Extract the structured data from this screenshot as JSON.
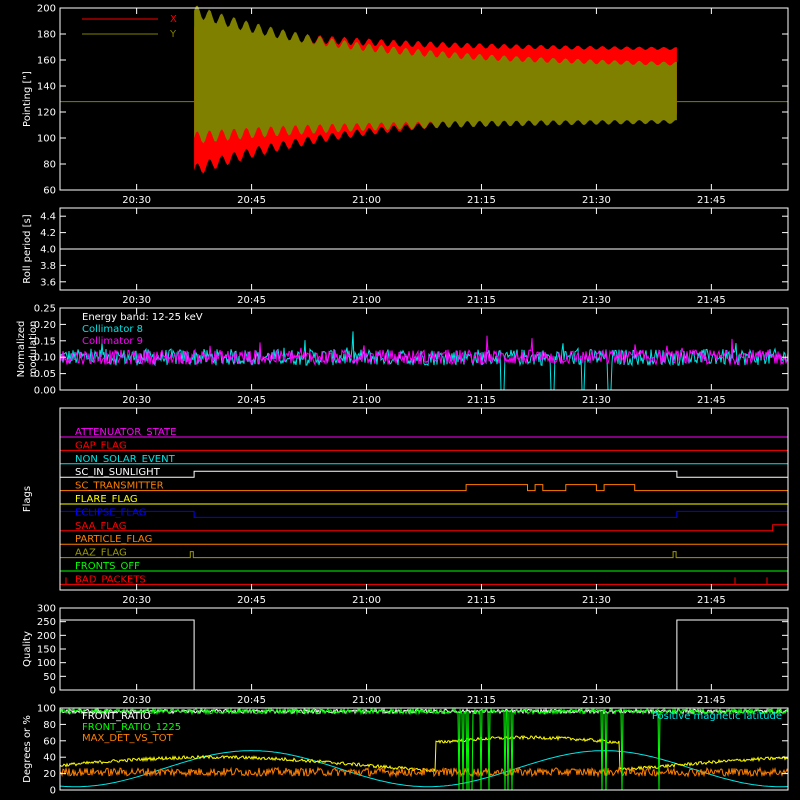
{
  "colors": {
    "background": "#000000",
    "axes": "#ffffff",
    "x_series": "#ff0000",
    "y_series": "#7f7f00",
    "white": "#ffffff",
    "cyan": "#00e5e5",
    "magenta": "#ff00ff",
    "yellow": "#ffff00",
    "orange": "#ff7f00",
    "green": "#00ff00",
    "blue": "#0000ff",
    "olive": "#9a9a00",
    "red": "#ff0000",
    "purple": "#b000b0"
  },
  "chart_data": [
    {
      "type": "area",
      "ylabel": "Pointing [\"]",
      "ylim": [
        60,
        200
      ],
      "yticks": [
        "60",
        "80",
        "100",
        "120",
        "140",
        "160",
        "180",
        "200"
      ],
      "xticks": [
        "20:30",
        "20:45",
        "21:00",
        "21:15",
        "21:30",
        "21:45"
      ],
      "xlim_minutes": [
        20,
        115
      ],
      "legend": [
        "X",
        "Y"
      ],
      "baseline_y": 128,
      "data_span_minutes": [
        37.5,
        100.5
      ],
      "series": [
        {
          "name": "X",
          "upper_start": 185,
          "upper_end": 168,
          "lower_start": 75,
          "lower_end": 120
        },
        {
          "name": "Y",
          "upper_start": 198,
          "upper_end": 155,
          "lower_start": 100,
          "lower_end": 113
        }
      ]
    },
    {
      "type": "line",
      "ylabel": "Roll period [s]",
      "ylim": [
        3.5,
        4.5
      ],
      "yticks": [
        "3.6",
        "3.8",
        "4.0",
        "4.2",
        "4.4"
      ],
      "xticks": [
        "20:30",
        "20:45",
        "21:00",
        "21:15",
        "21:30",
        "21:45"
      ],
      "value": 4.0
    },
    {
      "type": "line",
      "ylabel_lines": [
        "Normalized",
        "modulation"
      ],
      "ylim": [
        0,
        0.25
      ],
      "yticks": [
        "0.00",
        "0.05",
        "0.10",
        "0.15",
        "0.20",
        "0.25"
      ],
      "xticks": [
        "20:30",
        "20:45",
        "21:00",
        "21:15",
        "21:30",
        "21:45"
      ],
      "legend": [
        "Energy band: 12-25 keV",
        "Collimator 8",
        "Collimator 9"
      ],
      "mean_value": 0.1,
      "dropout_minutes": [
        [
          77.5,
          78
        ],
        [
          84,
          84.5
        ],
        [
          88,
          88.5
        ],
        [
          91.5,
          92
        ]
      ]
    },
    {
      "type": "line",
      "ylabel": "Flags",
      "xticks": [
        "20:30",
        "20:45",
        "21:00",
        "21:15",
        "21:30",
        "21:45"
      ],
      "flags": [
        {
          "label": "ATTENUATOR_STATE",
          "color": "magenta"
        },
        {
          "label": "GAP_FLAG",
          "color": "red"
        },
        {
          "label": "NON_SOLAR_EVENT",
          "color": "cyan"
        },
        {
          "label": "SC_IN_SUNLIGHT",
          "color": "white"
        },
        {
          "label": "SC_TRANSMITTER",
          "color": "orange"
        },
        {
          "label": "FLARE_FLAG",
          "color": "yellow"
        },
        {
          "label": "ECLIPSE_FLAG",
          "color": "blue"
        },
        {
          "label": "SAA_FLAG",
          "color": "red"
        },
        {
          "label": "PARTICLE_FLAG",
          "color": "orange"
        },
        {
          "label": "AAZ_FLAG",
          "color": "olive"
        },
        {
          "label": "FRONTS_OFF",
          "color": "green"
        },
        {
          "label": "BAD_PACKETS",
          "color": "red"
        }
      ]
    },
    {
      "type": "line",
      "ylabel": "Quality",
      "ylim": [
        0,
        300
      ],
      "yticks": [
        "0",
        "50",
        "100",
        "150",
        "200",
        "250",
        "300"
      ],
      "xticks": [
        "20:30",
        "20:45",
        "21:00",
        "21:15",
        "21:30",
        "21:45"
      ],
      "high_value": 256,
      "low_interval_minutes": [
        37.5,
        100.5
      ]
    },
    {
      "type": "line",
      "ylabel": "Degrees or %",
      "ylim": [
        0,
        100
      ],
      "yticks": [
        "0",
        "20",
        "40",
        "60",
        "80",
        "100"
      ],
      "legend": [
        "FRONT_RATIO",
        "FRONT_RATIO_1225",
        "MAX_DET_VS_TOT"
      ],
      "right_legend": "Positive magnetic latitude",
      "series": [
        {
          "name": "FRONT_RATIO",
          "color": "white",
          "mean_value": 96
        },
        {
          "name": "FRONT_RATIO_1225",
          "color": "green",
          "mean_value": 96
        },
        {
          "name": "MAX_DET_VS_TOT",
          "color": "orange",
          "mean_value": 22
        }
      ]
    }
  ]
}
